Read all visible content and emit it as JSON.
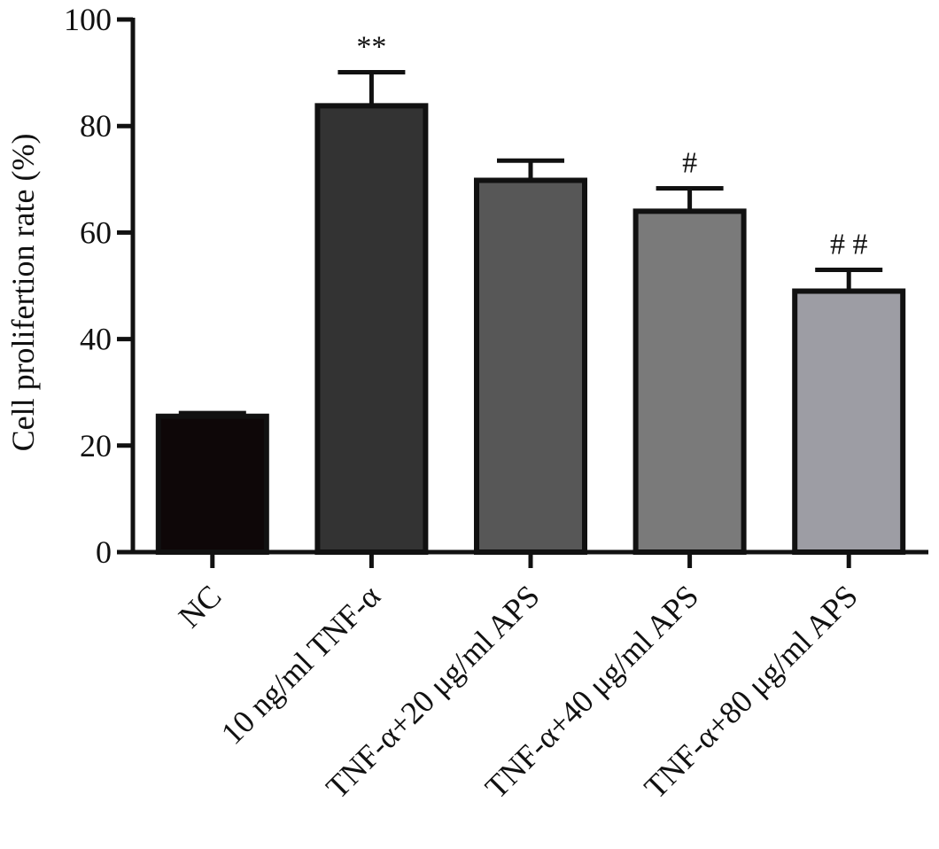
{
  "chart_data": {
    "type": "bar",
    "title": "",
    "xlabel": "",
    "ylabel": "Cell prolifertion rate (%)",
    "ylim": [
      0,
      100
    ],
    "yticks": [
      0,
      20,
      40,
      60,
      80,
      100
    ],
    "categories": [
      "NC",
      "10 ng/ml TNF-α",
      "TNF-α+20 μg/ml APS",
      "TNF-α+40 μg/ml APS",
      "TNF-α+80 μg/ml APS"
    ],
    "values": [
      25.5,
      83.8,
      69.8,
      64.0,
      49.0
    ],
    "errors": [
      0.6,
      6.3,
      3.7,
      4.3,
      4.0
    ],
    "significance": [
      "",
      "**",
      "",
      "#",
      "# #"
    ],
    "bar_colors": [
      "#0e0708",
      "#333333",
      "#575757",
      "#7a7a7a",
      "#9d9da4"
    ],
    "grid": false,
    "legend": "none"
  }
}
